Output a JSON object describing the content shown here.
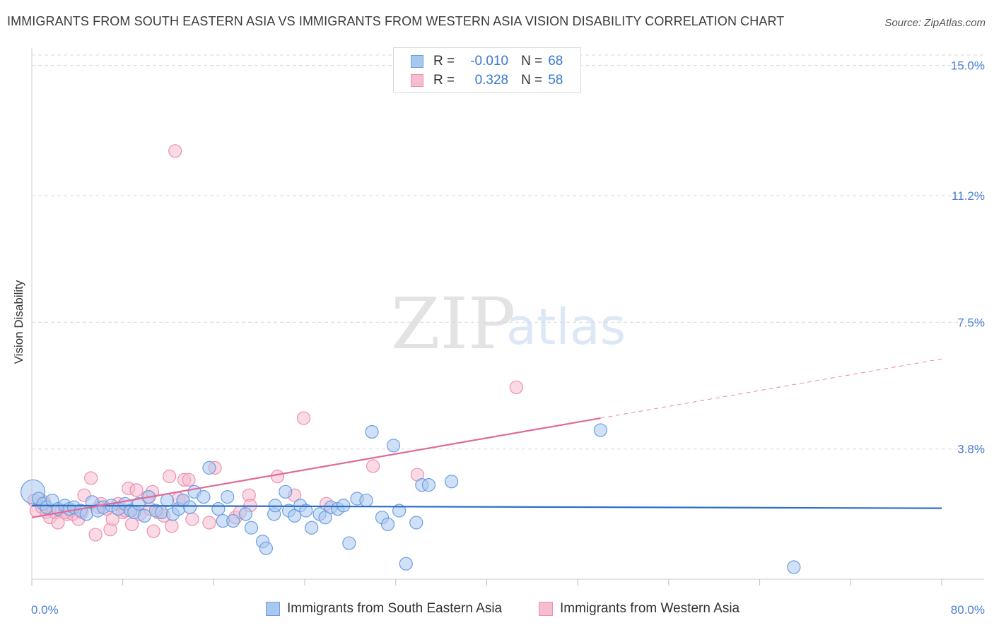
{
  "title": "IMMIGRANTS FROM SOUTH EASTERN ASIA VS IMMIGRANTS FROM WESTERN ASIA VISION DISABILITY CORRELATION CHART",
  "source": "Source: ZipAtlas.com",
  "watermark": {
    "zip": "ZIP",
    "atlas": "atlas"
  },
  "legend_top": [
    {
      "r_label": "R =",
      "r_value": "-0.010",
      "n_label": "N =",
      "n_value": "68"
    },
    {
      "r_label": "R =",
      "r_value": "0.328",
      "n_label": "N =",
      "n_value": "58"
    }
  ],
  "colors": {
    "blue_fill": "#a9c8f0",
    "blue_stroke": "#6a9fe0",
    "blue_line": "#2d6fc7",
    "pink_fill": "#f6bcd0",
    "pink_stroke": "#ee8fb0",
    "pink_line": "#e0699a",
    "axis_label": "#4a7fd4",
    "grid": "#d9d9d9"
  },
  "chart_data": {
    "type": "scatter",
    "title": "IMMIGRANTS FROM SOUTH EASTERN ASIA VS IMMIGRANTS FROM WESTERN ASIA VISION DISABILITY CORRELATION CHART",
    "xlabel": "",
    "ylabel": "Vision Disability",
    "xlim": [
      0,
      80
    ],
    "ylim": [
      0,
      15.3
    ],
    "x_tick_labels": [
      "0.0%",
      "80.0%"
    ],
    "y_ticks": [
      3.8,
      7.5,
      11.2,
      15.0
    ],
    "y_tick_labels": [
      "3.8%",
      "7.5%",
      "11.2%",
      "15.0%"
    ],
    "grid": "horizontal dashed",
    "legend_position": "bottom",
    "series": [
      {
        "name": "Immigrants from South Eastern Asia",
        "color": "#a9c8f0",
        "trend": {
          "x": [
            0,
            80
          ],
          "y": [
            2.15,
            2.07
          ]
        },
        "points": [
          {
            "x": 0.1,
            "y": 2.55,
            "big": true
          },
          {
            "x": 0.6,
            "y": 2.35
          },
          {
            "x": 1.0,
            "y": 2.2
          },
          {
            "x": 1.3,
            "y": 2.1
          },
          {
            "x": 1.8,
            "y": 2.3
          },
          {
            "x": 2.3,
            "y": 2.05
          },
          {
            "x": 2.9,
            "y": 2.15
          },
          {
            "x": 3.3,
            "y": 2.05
          },
          {
            "x": 3.7,
            "y": 2.1
          },
          {
            "x": 4.3,
            "y": 2.0
          },
          {
            "x": 4.8,
            "y": 1.9
          },
          {
            "x": 5.3,
            "y": 2.25
          },
          {
            "x": 5.8,
            "y": 2.0
          },
          {
            "x": 6.3,
            "y": 2.1
          },
          {
            "x": 7.0,
            "y": 2.15
          },
          {
            "x": 7.6,
            "y": 2.05
          },
          {
            "x": 8.2,
            "y": 2.2
          },
          {
            "x": 8.7,
            "y": 2.0
          },
          {
            "x": 9.0,
            "y": 1.95
          },
          {
            "x": 9.4,
            "y": 2.2
          },
          {
            "x": 9.9,
            "y": 1.85
          },
          {
            "x": 10.3,
            "y": 2.4
          },
          {
            "x": 10.9,
            "y": 2.0
          },
          {
            "x": 11.4,
            "y": 1.95
          },
          {
            "x": 11.9,
            "y": 2.3
          },
          {
            "x": 12.4,
            "y": 1.9
          },
          {
            "x": 12.9,
            "y": 2.05
          },
          {
            "x": 13.3,
            "y": 2.3
          },
          {
            "x": 13.9,
            "y": 2.1
          },
          {
            "x": 14.3,
            "y": 2.55
          },
          {
            "x": 15.1,
            "y": 2.4
          },
          {
            "x": 15.6,
            "y": 3.25
          },
          {
            "x": 16.4,
            "y": 2.05
          },
          {
            "x": 16.8,
            "y": 1.7
          },
          {
            "x": 17.2,
            "y": 2.4
          },
          {
            "x": 17.7,
            "y": 1.7
          },
          {
            "x": 18.8,
            "y": 1.9
          },
          {
            "x": 19.3,
            "y": 1.5
          },
          {
            "x": 20.3,
            "y": 1.1
          },
          {
            "x": 20.6,
            "y": 0.9
          },
          {
            "x": 21.3,
            "y": 1.9
          },
          {
            "x": 21.4,
            "y": 2.15
          },
          {
            "x": 22.3,
            "y": 2.55
          },
          {
            "x": 22.6,
            "y": 2.0
          },
          {
            "x": 23.1,
            "y": 1.85
          },
          {
            "x": 23.6,
            "y": 2.15
          },
          {
            "x": 24.1,
            "y": 2.0
          },
          {
            "x": 24.6,
            "y": 1.5
          },
          {
            "x": 25.3,
            "y": 1.9
          },
          {
            "x": 25.8,
            "y": 1.8
          },
          {
            "x": 26.3,
            "y": 2.1
          },
          {
            "x": 26.9,
            "y": 2.05
          },
          {
            "x": 27.4,
            "y": 2.15
          },
          {
            "x": 27.9,
            "y": 1.05
          },
          {
            "x": 28.6,
            "y": 2.35
          },
          {
            "x": 29.4,
            "y": 2.3
          },
          {
            "x": 29.9,
            "y": 4.3
          },
          {
            "x": 30.8,
            "y": 1.8
          },
          {
            "x": 31.3,
            "y": 1.6
          },
          {
            "x": 31.8,
            "y": 3.9
          },
          {
            "x": 32.3,
            "y": 2.0
          },
          {
            "x": 32.9,
            "y": 0.45
          },
          {
            "x": 33.8,
            "y": 1.65
          },
          {
            "x": 34.3,
            "y": 2.75
          },
          {
            "x": 34.9,
            "y": 2.75
          },
          {
            "x": 36.9,
            "y": 2.85
          },
          {
            "x": 50.0,
            "y": 4.35
          },
          {
            "x": 67.0,
            "y": 0.35
          }
        ]
      },
      {
        "name": "Immigrants from Western Asia",
        "color": "#f6bcd0",
        "trend": {
          "x": [
            0,
            50
          ],
          "y": [
            1.8,
            4.7
          ],
          "dashed_to": {
            "x": 80,
            "y": 6.43
          }
        },
        "points": [
          {
            "x": 0.2,
            "y": 2.3
          },
          {
            "x": 0.4,
            "y": 2.0
          },
          {
            "x": 0.9,
            "y": 2.1
          },
          {
            "x": 1.3,
            "y": 1.95
          },
          {
            "x": 1.6,
            "y": 1.8
          },
          {
            "x": 2.1,
            "y": 1.95
          },
          {
            "x": 2.3,
            "y": 1.65
          },
          {
            "x": 2.6,
            "y": 2.0
          },
          {
            "x": 3.1,
            "y": 1.9
          },
          {
            "x": 3.4,
            "y": 2.0
          },
          {
            "x": 3.6,
            "y": 1.9
          },
          {
            "x": 4.1,
            "y": 1.75
          },
          {
            "x": 4.4,
            "y": 1.95
          },
          {
            "x": 4.6,
            "y": 2.45
          },
          {
            "x": 5.2,
            "y": 2.95
          },
          {
            "x": 5.6,
            "y": 1.3
          },
          {
            "x": 6.1,
            "y": 2.2
          },
          {
            "x": 6.6,
            "y": 2.05
          },
          {
            "x": 6.9,
            "y": 1.45
          },
          {
            "x": 7.1,
            "y": 1.75
          },
          {
            "x": 7.6,
            "y": 2.2
          },
          {
            "x": 8.0,
            "y": 1.95
          },
          {
            "x": 8.2,
            "y": 2.0
          },
          {
            "x": 8.5,
            "y": 2.65
          },
          {
            "x": 8.7,
            "y": 2.0
          },
          {
            "x": 8.8,
            "y": 1.6
          },
          {
            "x": 9.2,
            "y": 2.6
          },
          {
            "x": 9.5,
            "y": 1.9
          },
          {
            "x": 10.4,
            "y": 2.05
          },
          {
            "x": 10.2,
            "y": 2.4
          },
          {
            "x": 10.6,
            "y": 2.55
          },
          {
            "x": 10.7,
            "y": 1.4
          },
          {
            "x": 11.1,
            "y": 1.95
          },
          {
            "x": 11.6,
            "y": 1.85
          },
          {
            "x": 12.1,
            "y": 3.0
          },
          {
            "x": 12.3,
            "y": 1.55
          },
          {
            "x": 12.9,
            "y": 2.35
          },
          {
            "x": 13.3,
            "y": 2.3
          },
          {
            "x": 13.4,
            "y": 2.9
          },
          {
            "x": 13.8,
            "y": 2.9
          },
          {
            "x": 14.1,
            "y": 1.75
          },
          {
            "x": 15.6,
            "y": 1.65
          },
          {
            "x": 16.1,
            "y": 3.25
          },
          {
            "x": 17.9,
            "y": 1.8
          },
          {
            "x": 18.3,
            "y": 1.95
          },
          {
            "x": 19.1,
            "y": 2.45
          },
          {
            "x": 19.2,
            "y": 2.15
          },
          {
            "x": 21.6,
            "y": 3.0
          },
          {
            "x": 23.1,
            "y": 2.45
          },
          {
            "x": 23.9,
            "y": 4.7
          },
          {
            "x": 25.9,
            "y": 2.2
          },
          {
            "x": 30.0,
            "y": 3.3
          },
          {
            "x": 33.9,
            "y": 3.05
          },
          {
            "x": 42.6,
            "y": 5.6
          },
          {
            "x": 12.6,
            "y": 12.5
          },
          {
            "x": 1.1,
            "y": 2.25
          },
          {
            "x": 2.9,
            "y": 1.95
          },
          {
            "x": 5.9,
            "y": 2.1
          }
        ]
      }
    ]
  },
  "bottom_legend": [
    {
      "label": "Immigrants from South Eastern Asia"
    },
    {
      "label": "Immigrants from Western Asia"
    }
  ]
}
